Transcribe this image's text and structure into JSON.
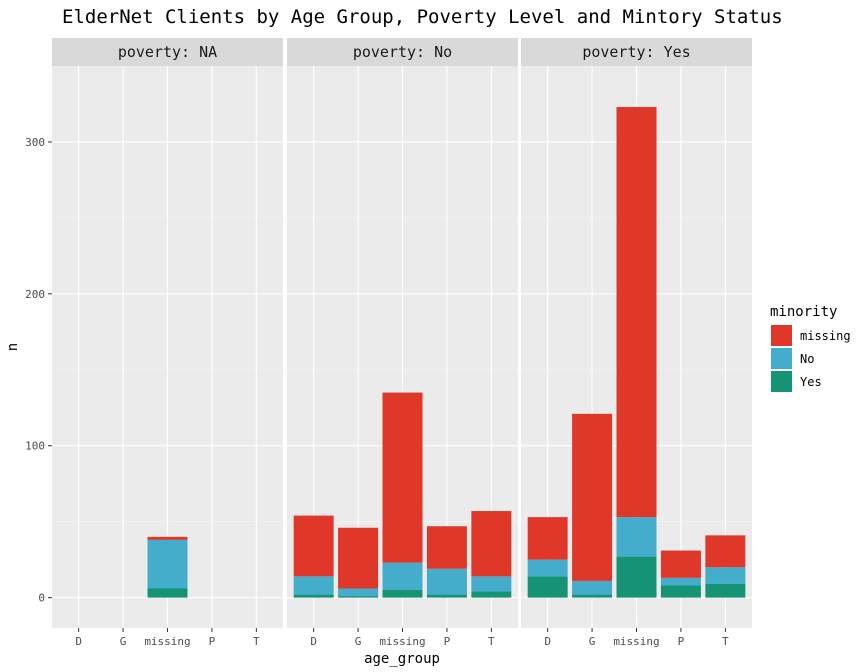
{
  "chart_data": {
    "type": "bar",
    "stacked": true,
    "title": "ElderNet Clients by Age Group, Poverty Level and Mintory Status",
    "xlabel": "age_group",
    "ylabel": "n",
    "ylim": [
      -20,
      350
    ],
    "yticks": [
      0,
      100,
      200,
      300
    ],
    "categories": [
      "D",
      "G",
      "missing",
      "P",
      "T"
    ],
    "facet_label_prefix": "poverty: ",
    "legend": {
      "title": "minority",
      "position": "right",
      "entries": [
        {
          "label": "missing",
          "color": "#E0372B"
        },
        {
          "label": "No",
          "color": "#44ADCC"
        },
        {
          "label": "Yes",
          "color": "#169374"
        }
      ]
    },
    "facets": [
      {
        "label": "poverty: NA",
        "series": [
          {
            "name": "Yes",
            "values": [
              0,
              0,
              6,
              0,
              0
            ]
          },
          {
            "name": "No",
            "values": [
              0,
              0,
              32,
              0,
              0
            ]
          },
          {
            "name": "missing",
            "values": [
              0,
              0,
              2,
              0,
              0
            ]
          }
        ]
      },
      {
        "label": "poverty: No",
        "series": [
          {
            "name": "Yes",
            "values": [
              2,
              1,
              5,
              2,
              4
            ]
          },
          {
            "name": "No",
            "values": [
              12,
              5,
              18,
              17,
              10
            ]
          },
          {
            "name": "missing",
            "values": [
              40,
              40,
              112,
              28,
              43
            ]
          }
        ]
      },
      {
        "label": "poverty: Yes",
        "series": [
          {
            "name": "Yes",
            "values": [
              14,
              2,
              27,
              8,
              9
            ]
          },
          {
            "name": "No",
            "values": [
              11,
              9,
              26,
              5,
              11
            ]
          },
          {
            "name": "missing",
            "values": [
              28,
              110,
              270,
              18,
              21
            ]
          }
        ]
      }
    ]
  }
}
